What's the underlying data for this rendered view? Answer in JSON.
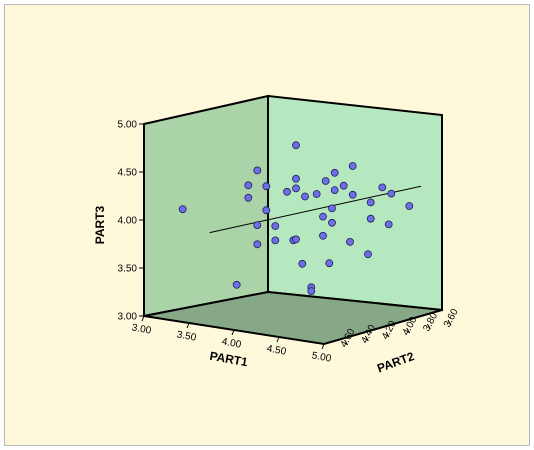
{
  "chart_data": {
    "type": "scatter",
    "subtype": "3d-scatter-with-fit-line",
    "axes": {
      "x": {
        "label": "PART1",
        "ticks": [
          "3.00",
          "3.50",
          "4.00",
          "4.50",
          "5.00"
        ],
        "range": [
          3.0,
          5.0
        ]
      },
      "y": {
        "label": "PART2",
        "ticks": [
          "4.60",
          "4.40",
          "4.20",
          "4.00",
          "3.80",
          "3.60"
        ],
        "range": [
          3.6,
          4.8
        ],
        "direction": "descending"
      },
      "z": {
        "label": "PART3",
        "ticks": [
          "3.00",
          "3.50",
          "4.00",
          "4.50",
          "5.00"
        ],
        "range": [
          3.0,
          5.0
        ]
      }
    },
    "points": [
      {
        "x": 4.0,
        "y": 4.2,
        "z": 4.8
      },
      {
        "x": 3.8,
        "y": 4.4,
        "z": 4.55
      },
      {
        "x": 4.4,
        "y": 4.0,
        "z": 4.6
      },
      {
        "x": 4.2,
        "y": 4.0,
        "z": 4.5
      },
      {
        "x": 4.0,
        "y": 4.2,
        "z": 4.45
      },
      {
        "x": 3.9,
        "y": 4.4,
        "z": 4.4
      },
      {
        "x": 4.1,
        "y": 4.0,
        "z": 4.4
      },
      {
        "x": 4.3,
        "y": 4.0,
        "z": 4.38
      },
      {
        "x": 3.7,
        "y": 4.4,
        "z": 4.38
      },
      {
        "x": 4.0,
        "y": 4.2,
        "z": 4.35
      },
      {
        "x": 4.2,
        "y": 4.0,
        "z": 4.32
      },
      {
        "x": 4.4,
        "y": 4.0,
        "z": 4.3
      },
      {
        "x": 3.9,
        "y": 4.2,
        "z": 4.3
      },
      {
        "x": 4.1,
        "y": 4.2,
        "z": 4.28
      },
      {
        "x": 4.5,
        "y": 3.8,
        "z": 4.35
      },
      {
        "x": 4.6,
        "y": 3.8,
        "z": 4.3
      },
      {
        "x": 4.6,
        "y": 4.0,
        "z": 4.25
      },
      {
        "x": 3.7,
        "y": 4.4,
        "z": 4.25
      },
      {
        "x": 4.0,
        "y": 4.0,
        "z": 4.25
      },
      {
        "x": 4.4,
        "y": 4.2,
        "z": 4.2
      },
      {
        "x": 4.8,
        "y": 3.8,
        "z": 4.2
      },
      {
        "x": 3.9,
        "y": 4.4,
        "z": 4.15
      },
      {
        "x": 3.2,
        "y": 4.6,
        "z": 4.1
      },
      {
        "x": 4.3,
        "y": 4.2,
        "z": 4.1
      },
      {
        "x": 4.6,
        "y": 4.0,
        "z": 4.08
      },
      {
        "x": 4.8,
        "y": 4.0,
        "z": 4.05
      },
      {
        "x": 4.4,
        "y": 4.2,
        "z": 4.05
      },
      {
        "x": 4.0,
        "y": 4.4,
        "z": 4.0
      },
      {
        "x": 3.8,
        "y": 4.4,
        "z": 3.98
      },
      {
        "x": 4.3,
        "y": 4.2,
        "z": 3.9
      },
      {
        "x": 4.6,
        "y": 4.2,
        "z": 3.88
      },
      {
        "x": 4.0,
        "y": 4.4,
        "z": 3.85
      },
      {
        "x": 4.2,
        "y": 4.4,
        "z": 3.88
      },
      {
        "x": 4.0,
        "y": 4.2,
        "z": 3.82
      },
      {
        "x": 3.8,
        "y": 4.4,
        "z": 3.78
      },
      {
        "x": 4.8,
        "y": 4.2,
        "z": 3.78
      },
      {
        "x": 4.6,
        "y": 4.4,
        "z": 3.7
      },
      {
        "x": 4.3,
        "y": 4.4,
        "z": 3.65
      },
      {
        "x": 3.8,
        "y": 4.6,
        "z": 3.4
      },
      {
        "x": 4.4,
        "y": 4.4,
        "z": 3.42
      },
      {
        "x": 4.4,
        "y": 4.4,
        "z": 3.38
      }
    ],
    "fit_line": {
      "from": {
        "x": 3.5,
        "y": 4.6,
        "z": 3.9
      },
      "to": {
        "x": 4.7,
        "y": 3.6,
        "z": 4.35
      }
    },
    "grid": false,
    "colors": {
      "background": "#fff9dc",
      "left_wall": "#aad4a8",
      "back_wall": "#b6e8c0",
      "floor": "#86a886",
      "marker_fill": "#6e6ee6",
      "marker_edge": "#20205a"
    }
  }
}
